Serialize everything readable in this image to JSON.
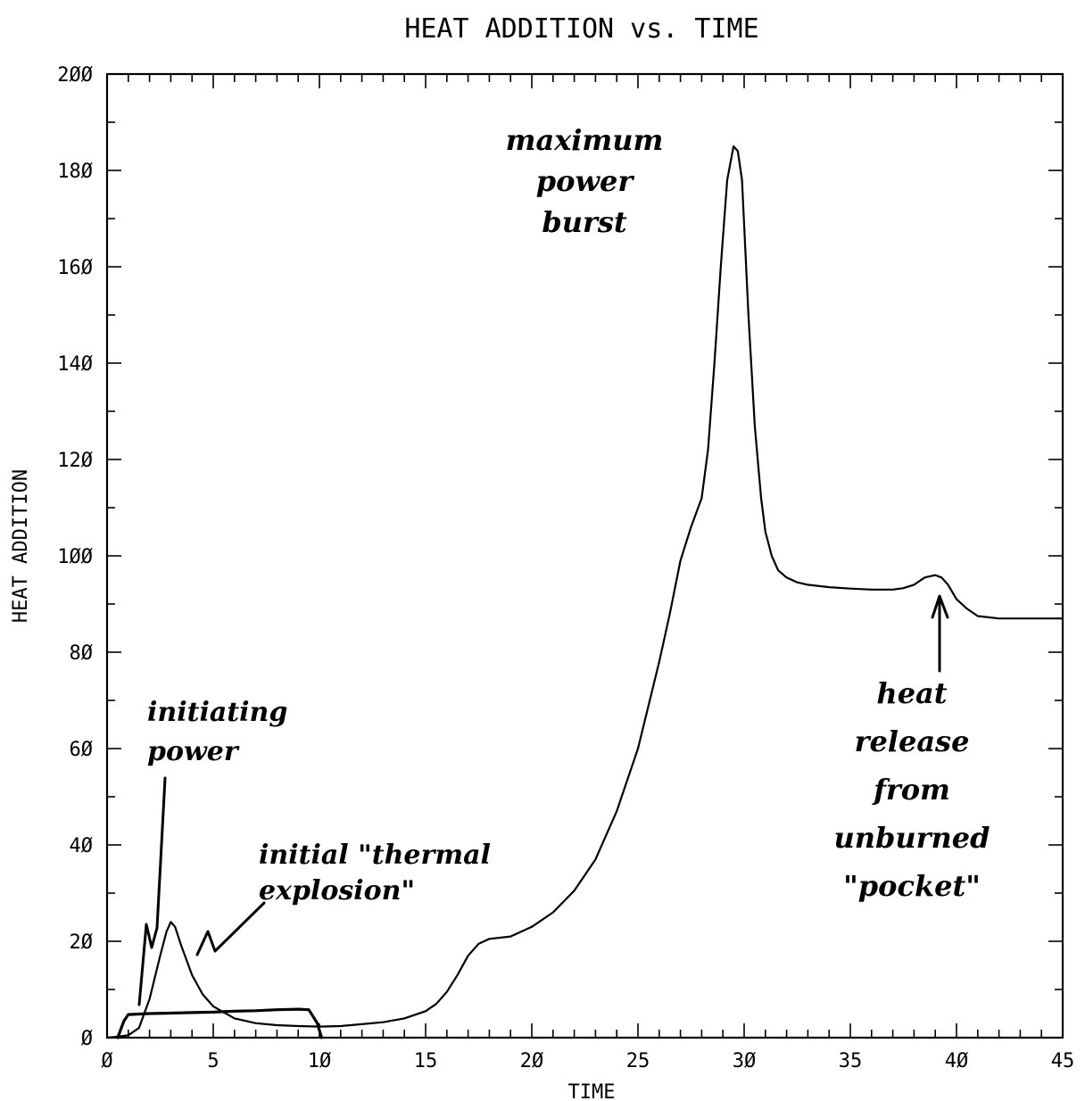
{
  "chart_data": {
    "type": "line",
    "title": "HEAT ADDITION vs. TIME",
    "xlabel": "TIME",
    "ylabel": "HEAT ADDITION",
    "xlim": [
      0,
      45
    ],
    "ylim": [
      0,
      200
    ],
    "x_ticks": [
      0,
      5,
      10,
      15,
      20,
      25,
      30,
      35,
      40,
      45
    ],
    "x_tick_labels": [
      "Ø",
      "5",
      "1Ø",
      "15",
      "2Ø",
      "25",
      "3Ø",
      "35",
      "4Ø",
      "45"
    ],
    "y_ticks": [
      0,
      20,
      40,
      60,
      80,
      100,
      120,
      140,
      160,
      180,
      200
    ],
    "y_tick_labels": [
      "Ø",
      "2Ø",
      "4Ø",
      "6Ø",
      "8Ø",
      "1ØØ",
      "12Ø",
      "14Ø",
      "16Ø",
      "18Ø",
      "2ØØ"
    ],
    "grid": false,
    "series": [
      {
        "x": [
          0,
          0.5,
          1,
          1.5,
          2,
          2.5,
          2.8,
          3.0,
          3.2,
          3.5,
          4,
          4.5,
          5,
          6,
          7,
          8,
          9,
          10,
          11,
          12,
          13,
          14,
          15,
          15.5,
          16,
          16.5,
          17,
          17.5,
          18,
          19,
          20,
          21,
          22,
          23,
          24,
          25,
          26,
          26.5,
          27,
          27.5,
          28,
          28.3,
          28.6,
          28.9,
          29.2,
          29.5,
          29.7,
          29.9,
          30.2,
          30.5,
          30.8,
          31.0,
          31.3,
          31.6,
          32.0,
          32.5,
          33,
          34,
          35,
          36,
          37,
          37.5,
          38,
          38.5,
          39,
          39.3,
          39.6,
          40,
          40.5,
          41,
          42,
          43,
          44,
          45
        ],
        "y": [
          0,
          0.2,
          0.5,
          2,
          8,
          17,
          22,
          24,
          23,
          19,
          13,
          9,
          6.5,
          4,
          3,
          2.6,
          2.4,
          2.3,
          2.4,
          2.8,
          3.2,
          4,
          5.5,
          7,
          9.5,
          13,
          17,
          19.5,
          20.5,
          21,
          23,
          26,
          30.5,
          37,
          47,
          60,
          78,
          88,
          99,
          106,
          112,
          122,
          140,
          160,
          178,
          185,
          184,
          178,
          150,
          127,
          112,
          105,
          100,
          97,
          95.5,
          94.5,
          94,
          93.5,
          93.2,
          93,
          93,
          93.3,
          94,
          95.5,
          96,
          95.5,
          94,
          91,
          89,
          87.5,
          87,
          87,
          87,
          87
        ]
      },
      {
        "x": [
          0.5,
          0.8,
          1,
          2,
          3,
          4,
          5,
          6,
          7,
          8,
          9,
          9.5,
          9.9,
          10.1
        ],
        "y": [
          0,
          3.5,
          4.8,
          5,
          5.1,
          5.2,
          5.3,
          5.5,
          5.6,
          5.8,
          5.9,
          5.8,
          3,
          0
        ]
      }
    ],
    "annotations": [
      {
        "text": "initiating\npower"
      },
      {
        "text": "initial \"thermal\nexplosion\""
      },
      {
        "text": "maximum\npower\nburst"
      },
      {
        "text": "heat\nrelease\nfrom\nunburned\n\"pocket\""
      }
    ]
  }
}
